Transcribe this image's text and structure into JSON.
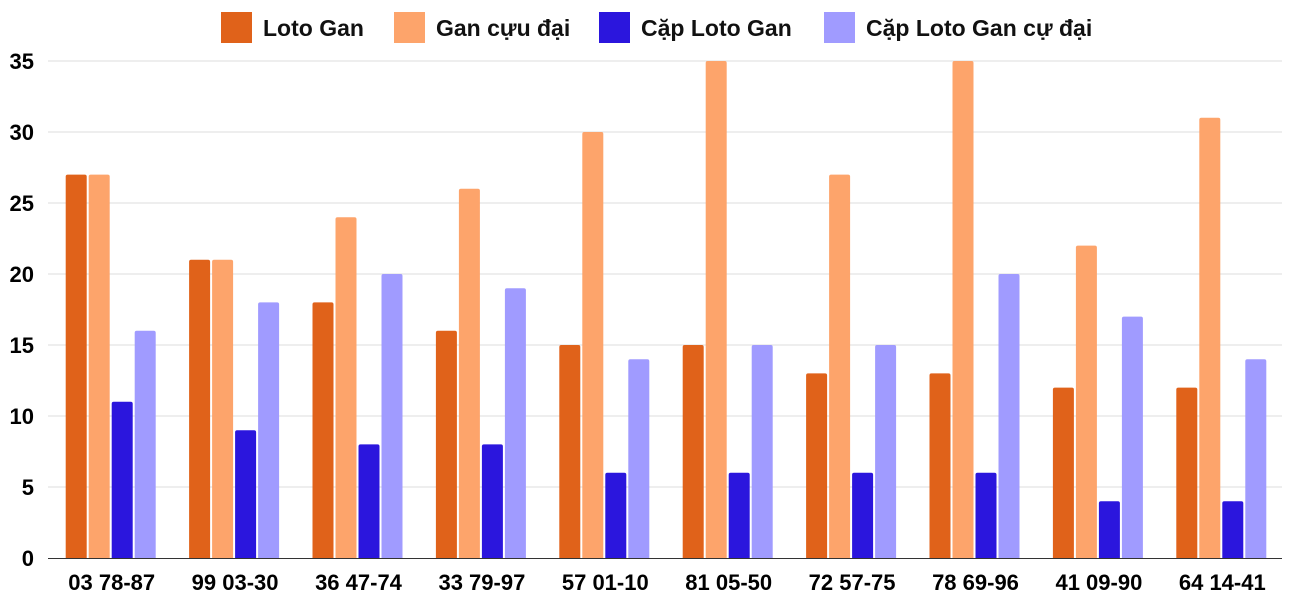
{
  "chart_data": {
    "type": "bar",
    "title": "",
    "xlabel": "",
    "ylabel": "",
    "ylim": [
      0,
      35
    ],
    "yticks": [
      0,
      5,
      10,
      15,
      20,
      25,
      30,
      35
    ],
    "grid": true,
    "legend_position": "top-center",
    "categories": [
      "03 78-87",
      "99 03-30",
      "36 47-74",
      "33 79-97",
      "57 01-10",
      "81 05-50",
      "72 57-75",
      "78 69-96",
      "41 09-90",
      "64 14-41"
    ],
    "series": [
      {
        "name": "Loto Gan",
        "color": "#e0621a",
        "values": [
          27,
          21,
          18,
          16,
          15,
          15,
          13,
          13,
          12,
          12
        ]
      },
      {
        "name": "Gan cựu đại",
        "color": "#fda46b",
        "values": [
          27,
          21,
          24,
          26,
          30,
          35,
          27,
          35,
          22,
          31
        ]
      },
      {
        "name": "Cặp Loto Gan",
        "color": "#2b16dd",
        "values": [
          11,
          9,
          8,
          8,
          6,
          6,
          6,
          6,
          4,
          4
        ]
      },
      {
        "name": "Cặp Loto Gan cự đại",
        "color": "#a09bff",
        "values": [
          16,
          18,
          20,
          19,
          14,
          15,
          15,
          20,
          17,
          14
        ]
      }
    ]
  }
}
